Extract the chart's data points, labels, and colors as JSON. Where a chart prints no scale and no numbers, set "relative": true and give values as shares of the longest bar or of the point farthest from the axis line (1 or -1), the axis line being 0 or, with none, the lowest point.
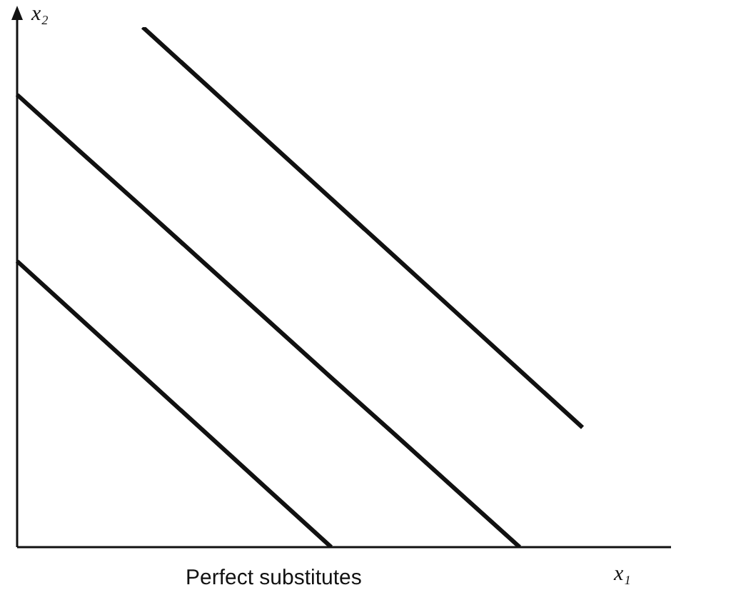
{
  "chart_data": {
    "type": "line",
    "relative": true,
    "xlabel": "x₁",
    "ylabel": "x₂",
    "annotations": [
      "Perfect substitutes"
    ],
    "marker": "none",
    "legend": false,
    "categories": [
      null,
      null,
      null,
      null,
      null,
      null,
      null,
      null,
      null,
      null,
      null
    ],
    "series": [
      {
        "color": "#111111",
        "values": [
          0.55,
          0.44,
          0.33,
          0.22,
          0.11,
          0,
          null,
          null,
          null,
          null,
          null
        ]
      },
      {
        "color": "#111111",
        "values": [
          0.87,
          0.761,
          0.653,
          0.544,
          0.435,
          0.326,
          0.218,
          0.109,
          0,
          null,
          null
        ]
      },
      {
        "color": "#111111",
        "values": [
          null,
          null,
          1,
          0.89,
          0.78,
          0.67,
          0.56,
          0.45,
          0.34,
          0.23,
          null
        ]
      }
    ]
  }
}
